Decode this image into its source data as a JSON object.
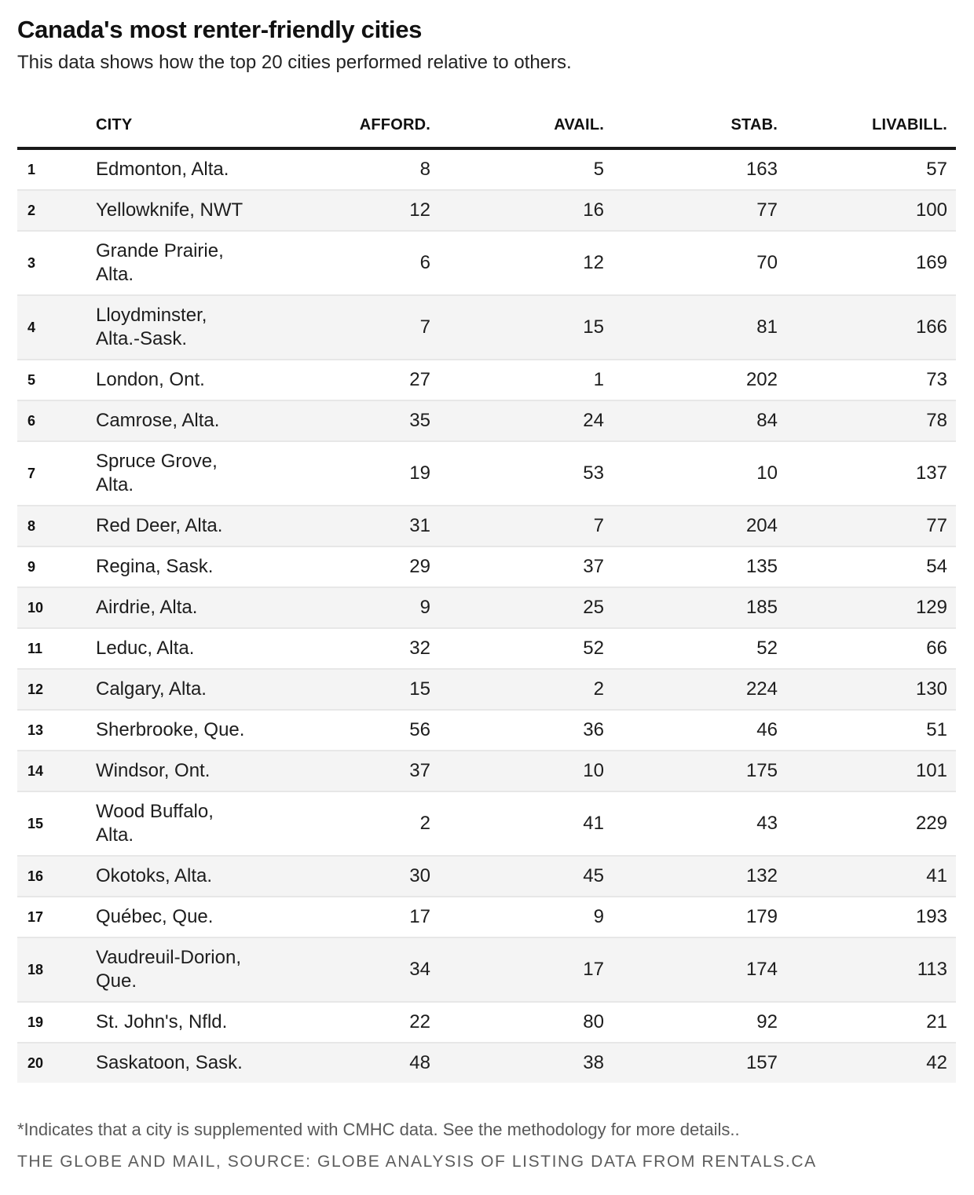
{
  "chart_data": {
    "type": "table",
    "title": "Canada's most renter-friendly cities",
    "subtitle": "This data shows how the top 20 cities performed relative to others.",
    "columns": [
      "CITY",
      "AFFORD.",
      "AVAIL.",
      "STAB.",
      "LIVABILL."
    ],
    "rows": [
      {
        "rank": "1",
        "city": "Edmonton, Alta.",
        "afford": "8",
        "avail": "5",
        "stab": "163",
        "livabill": "57"
      },
      {
        "rank": "2",
        "city": "Yellowknife, NWT",
        "afford": "12",
        "avail": "16",
        "stab": "77",
        "livabill": "100"
      },
      {
        "rank": "3",
        "city": "Grande Prairie,\nAlta.",
        "afford": "6",
        "avail": "12",
        "stab": "70",
        "livabill": "169"
      },
      {
        "rank": "4",
        "city": "Lloydminster,\nAlta.-Sask.",
        "afford": "7",
        "avail": "15",
        "stab": "81",
        "livabill": "166"
      },
      {
        "rank": "5",
        "city": "London, Ont.",
        "afford": "27",
        "avail": "1",
        "stab": "202",
        "livabill": "73"
      },
      {
        "rank": "6",
        "city": "Camrose, Alta.",
        "afford": "35",
        "avail": "24",
        "stab": "84",
        "livabill": "78"
      },
      {
        "rank": "7",
        "city": "Spruce Grove,\nAlta.",
        "afford": "19",
        "avail": "53",
        "stab": "10",
        "livabill": "137"
      },
      {
        "rank": "8",
        "city": "Red Deer, Alta.",
        "afford": "31",
        "avail": "7",
        "stab": "204",
        "livabill": "77"
      },
      {
        "rank": "9",
        "city": "Regina, Sask.",
        "afford": "29",
        "avail": "37",
        "stab": "135",
        "livabill": "54"
      },
      {
        "rank": "10",
        "city": "Airdrie, Alta.",
        "afford": "9",
        "avail": "25",
        "stab": "185",
        "livabill": "129"
      },
      {
        "rank": "11",
        "city": "Leduc, Alta.",
        "afford": "32",
        "avail": "52",
        "stab": "52",
        "livabill": "66"
      },
      {
        "rank": "12",
        "city": "Calgary, Alta.",
        "afford": "15",
        "avail": "2",
        "stab": "224",
        "livabill": "130"
      },
      {
        "rank": "13",
        "city": "Sherbrooke, Que.",
        "afford": "56",
        "avail": "36",
        "stab": "46",
        "livabill": "51"
      },
      {
        "rank": "14",
        "city": "Windsor, Ont.",
        "afford": "37",
        "avail": "10",
        "stab": "175",
        "livabill": "101"
      },
      {
        "rank": "15",
        "city": "Wood Buffalo,\nAlta.",
        "afford": "2",
        "avail": "41",
        "stab": "43",
        "livabill": "229"
      },
      {
        "rank": "16",
        "city": "Okotoks, Alta.",
        "afford": "30",
        "avail": "45",
        "stab": "132",
        "livabill": "41"
      },
      {
        "rank": "17",
        "city": "Québec, Que.",
        "afford": "17",
        "avail": "9",
        "stab": "179",
        "livabill": "193"
      },
      {
        "rank": "18",
        "city": "Vaudreuil-Dorion,\nQue.",
        "afford": "34",
        "avail": "17",
        "stab": "174",
        "livabill": "113"
      },
      {
        "rank": "19",
        "city": "St. John's, Nfld.",
        "afford": "22",
        "avail": "80",
        "stab": "92",
        "livabill": "21"
      },
      {
        "rank": "20",
        "city": "Saskatoon, Sask.",
        "afford": "48",
        "avail": "38",
        "stab": "157",
        "livabill": "42"
      }
    ]
  },
  "footnote": "*Indicates that a city is supplemented with CMHC data. See the methodology for more details..",
  "source": "THE GLOBE AND MAIL, SOURCE: GLOBE ANALYSIS OF LISTING DATA FROM RENTALS.CA",
  "colors": {
    "text": "#1d1d1d",
    "muted_text": "#5c5c5c",
    "header_rule": "#1a1a1a",
    "row_shade": "#f4f4f4",
    "row_divider": "#e7e7e7"
  }
}
